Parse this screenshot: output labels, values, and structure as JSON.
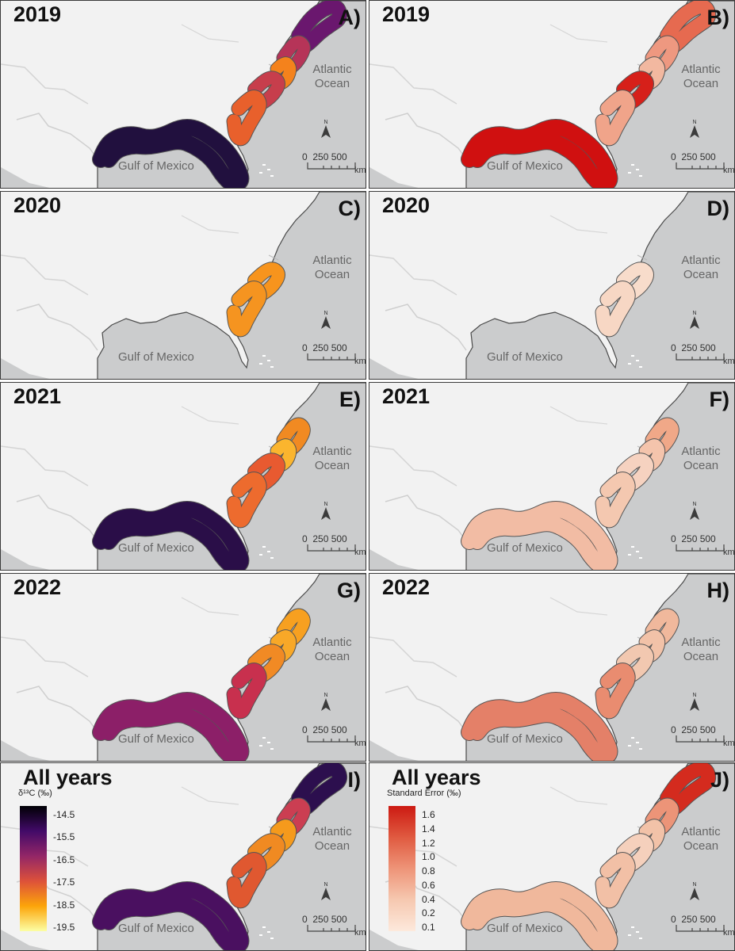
{
  "figure": {
    "panels": [
      {
        "label": "A)",
        "year": "2019",
        "colors": [
          "#6a176e",
          "#b63458",
          "#f4821c",
          "#c73e4c",
          "#e8602c",
          "#21103e"
        ]
      },
      {
        "label": "B)",
        "year": "2019",
        "colors": [
          "#e66a50",
          "#ee9880",
          "#f2b8a0",
          "#d6201a",
          "#f0a48a",
          "#d01010"
        ]
      },
      {
        "label": "C)",
        "year": "2020",
        "colors": [
          null,
          null,
          null,
          "#f7941d",
          "#f59420",
          null
        ]
      },
      {
        "label": "D)",
        "year": "2020",
        "colors": [
          null,
          null,
          null,
          "#f8dccb",
          "#f7d7c4",
          null
        ]
      },
      {
        "label": "E)",
        "year": "2021",
        "colors": [
          null,
          "#f18a22",
          "#fbb52e",
          "#e85a30",
          "#ed6b2e",
          "#2a0e48"
        ]
      },
      {
        "label": "F)",
        "year": "2021",
        "colors": [
          null,
          "#f0a888",
          "#f4c4ac",
          "#f6d2c0",
          "#f4c8b0",
          "#f2bca4"
        ]
      },
      {
        "label": "G)",
        "year": "2022",
        "colors": [
          null,
          "#f7a020",
          "#f8a828",
          "#f18a24",
          "#c8304e",
          "#8c1f68"
        ]
      },
      {
        "label": "H)",
        "year": "2022",
        "colors": [
          null,
          "#f0b89c",
          "#f2c2a8",
          "#f2c8b0",
          "#e98c70",
          "#e48068"
        ]
      },
      {
        "label": "I)",
        "year": "All years",
        "colors": [
          "#2c0f4e",
          "#cb3e52",
          "#f59a1c",
          "#f08a22",
          "#e05830",
          "#4a1060"
        ]
      },
      {
        "label": "J)",
        "year": "All years",
        "colors": [
          "#d42b1e",
          "#ec9478",
          "#f2c2a8",
          "#f5d0bc",
          "#f2c0a6",
          "#f0b89c"
        ]
      }
    ],
    "place_labels": {
      "ocean": "Atlantic Ocean",
      "gulf": "Gulf of Mexico"
    },
    "scale_bar": {
      "ticks": "0  250 500",
      "unit": "km"
    },
    "north_arrow_letter": "N",
    "base_colors": {
      "land": "#cbcccd",
      "background": "#f2f2f2",
      "coast": "#4a4a4a"
    },
    "legend_d13c": {
      "title": "δ¹³C (‰)",
      "ticks": [
        "-14.5",
        "-15.5",
        "-16.5",
        "-17.5",
        "-18.5",
        "-19.5"
      ],
      "colors": [
        "#000004",
        "#420a68",
        "#932667",
        "#dd513a",
        "#fca50a",
        "#fcffa4"
      ]
    },
    "legend_se": {
      "title": "Standard Error (‰)",
      "ticks": [
        "1.6",
        "1.4",
        "1.2",
        "1.0",
        "0.8",
        "0.6",
        "0.4",
        "0.2",
        "0.1"
      ],
      "colors": [
        "#cc1a12",
        "#e05a40",
        "#ee9478",
        "#f6c8b0",
        "#fde9dc"
      ]
    }
  }
}
